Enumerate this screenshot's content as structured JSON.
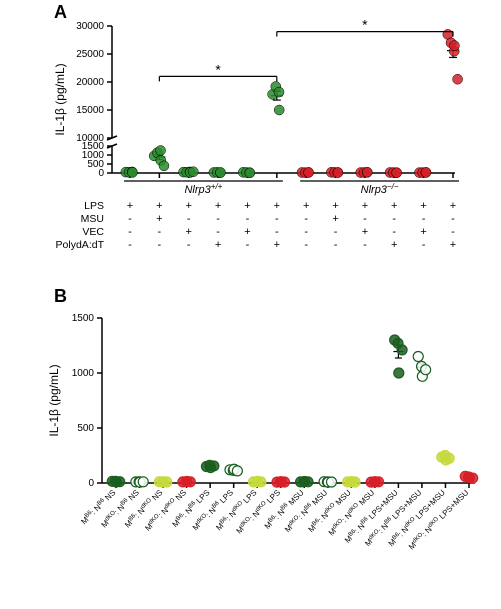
{
  "panelA": {
    "label": "A",
    "label_fontsize": 18,
    "type": "scatter",
    "ylabel": "IL-1β (pg/mL)",
    "label_font": 12,
    "tick_font": 10,
    "background_color": "#ffffff",
    "axis_color": "#000000",
    "break": {
      "low_max": 1500,
      "low_tick_step": 500,
      "high_min": 10000,
      "high_max": 30000,
      "high_tick_step": 5000
    },
    "colors": {
      "wt": "#2a8a2d",
      "ko": "#d62027"
    },
    "marker_size": 5,
    "genotypes": [
      "Nlrp3^+/+",
      "Nlrp3^-/-"
    ],
    "matrix_rows": [
      "LPS",
      "MSU",
      "VEC",
      "PolydA:dT"
    ],
    "matrix_values": [
      [
        "+",
        "+",
        "+",
        "+",
        "+",
        "+",
        "+",
        "+",
        "+",
        "+",
        "+",
        "+"
      ],
      [
        "-",
        "+",
        "-",
        "-",
        "-",
        "-",
        "-",
        "+",
        "-",
        "-",
        "-",
        "-"
      ],
      [
        "-",
        "-",
        "+",
        "-",
        "+",
        "-",
        "-",
        "-",
        "+",
        "-",
        "+",
        "-"
      ],
      [
        "-",
        "-",
        "-",
        "+",
        "-",
        "+",
        "-",
        "-",
        "-",
        "+",
        "-",
        "+"
      ]
    ],
    "groups": [
      {
        "color": "wt",
        "points": [
          50,
          40,
          60,
          30
        ]
      },
      {
        "color": "wt",
        "points": [
          950,
          1130,
          1250,
          700,
          400
        ]
      },
      {
        "color": "wt",
        "points": [
          50,
          40,
          60,
          30,
          70
        ]
      },
      {
        "color": "wt",
        "points": [
          30,
          40,
          20,
          30
        ]
      },
      {
        "color": "wt",
        "points": [
          40,
          30,
          20,
          10
        ]
      },
      {
        "color": "wt",
        "points": [
          17800,
          19200,
          18200,
          15000
        ]
      },
      {
        "color": "ko",
        "points": [
          30,
          20,
          25,
          35
        ]
      },
      {
        "color": "ko",
        "points": [
          40,
          35,
          30,
          25
        ]
      },
      {
        "color": "ko",
        "points": [
          25,
          30,
          35,
          40
        ]
      },
      {
        "color": "ko",
        "points": [
          30,
          25,
          20,
          15
        ]
      },
      {
        "color": "ko",
        "points": [
          20,
          25,
          30,
          35
        ]
      },
      {
        "color": "ko",
        "points": [
          28500,
          27000,
          25500,
          26500,
          20500
        ]
      }
    ],
    "sig_bars": [
      {
        "from": 1,
        "to": 5,
        "y": 21000,
        "label": "*"
      },
      {
        "from": 5,
        "to": 11,
        "y": 29000,
        "label": "*"
      }
    ]
  },
  "panelB": {
    "label": "B",
    "label_fontsize": 18,
    "type": "scatter",
    "ylabel": "IL-1β (pg/mL)",
    "label_font": 12,
    "tick_font": 10,
    "background_color": "#ffffff",
    "axis_color": "#000000",
    "ylim": [
      0,
      1500
    ],
    "ytick_step": 500,
    "category_label_fontsize": 8,
    "colors": {
      "dark_green_solid": "#1b5e20",
      "dark_green_open": "#1b5e20",
      "yellow_green": "#c5d93d",
      "red": "#d62027"
    },
    "fill_styles": [
      "solid",
      "open",
      "solid",
      "solid"
    ],
    "marker_size": 5,
    "categories": [
      "M^B6: N^B6 NS",
      "M^dKO: N^B6 NS",
      "M^B6: N^dKO NS",
      "M^dKO: N^dKO NS",
      "M^B6: N^B6 LPS",
      "M^dKO: N^B6 LPS",
      "M^B6: N^dKO LPS",
      "M^dKO: N^dKO LPS",
      "M^B6: N^B6 MSU",
      "M^dKO: N^B6 MSU",
      "M^B6: N^dKO MSU",
      "M^dKO: N^dKO MSU",
      "M^B6: N^B6 LPS+MSU",
      "M^dKO: N^B6 LPS+MSU",
      "M^B6: N^dKO LPS+MSU",
      "M^dKO: N^dKO LPS+MSU"
    ],
    "groups": [
      {
        "color": "dark_green_solid",
        "fill": "solid",
        "points": [
          15,
          15,
          10,
          12
        ]
      },
      {
        "color": "dark_green_open",
        "fill": "open",
        "points": [
          10,
          12,
          8,
          11
        ]
      },
      {
        "color": "yellow_green",
        "fill": "solid",
        "points": [
          12,
          10,
          11,
          9
        ]
      },
      {
        "color": "red",
        "fill": "solid",
        "points": [
          10,
          12,
          14,
          11
        ]
      },
      {
        "color": "dark_green_solid",
        "fill": "solid",
        "points": [
          150,
          160,
          140,
          155
        ]
      },
      {
        "color": "dark_green_open",
        "fill": "open",
        "points": [
          120,
          115,
          125,
          110
        ]
      },
      {
        "color": "yellow_green",
        "fill": "solid",
        "points": [
          10,
          12,
          15,
          11
        ]
      },
      {
        "color": "red",
        "fill": "solid",
        "points": [
          8,
          10,
          12,
          9
        ]
      },
      {
        "color": "dark_green_solid",
        "fill": "solid",
        "points": [
          10,
          12,
          14,
          11
        ]
      },
      {
        "color": "dark_green_open",
        "fill": "open",
        "points": [
          12,
          10,
          8,
          9
        ]
      },
      {
        "color": "yellow_green",
        "fill": "solid",
        "points": [
          10,
          11,
          12,
          9
        ]
      },
      {
        "color": "red",
        "fill": "solid",
        "points": [
          8,
          10,
          12,
          11
        ]
      },
      {
        "color": "dark_green_solid",
        "fill": "solid",
        "points": [
          1300,
          1270,
          1000,
          1210
        ]
      },
      {
        "color": "dark_green_open",
        "fill": "open",
        "points": [
          1150,
          1060,
          970,
          1030
        ]
      },
      {
        "color": "yellow_green",
        "fill": "solid",
        "points": [
          235,
          250,
          210,
          225
        ]
      },
      {
        "color": "red",
        "fill": "solid",
        "points": [
          60,
          55,
          50,
          45
        ]
      }
    ]
  }
}
